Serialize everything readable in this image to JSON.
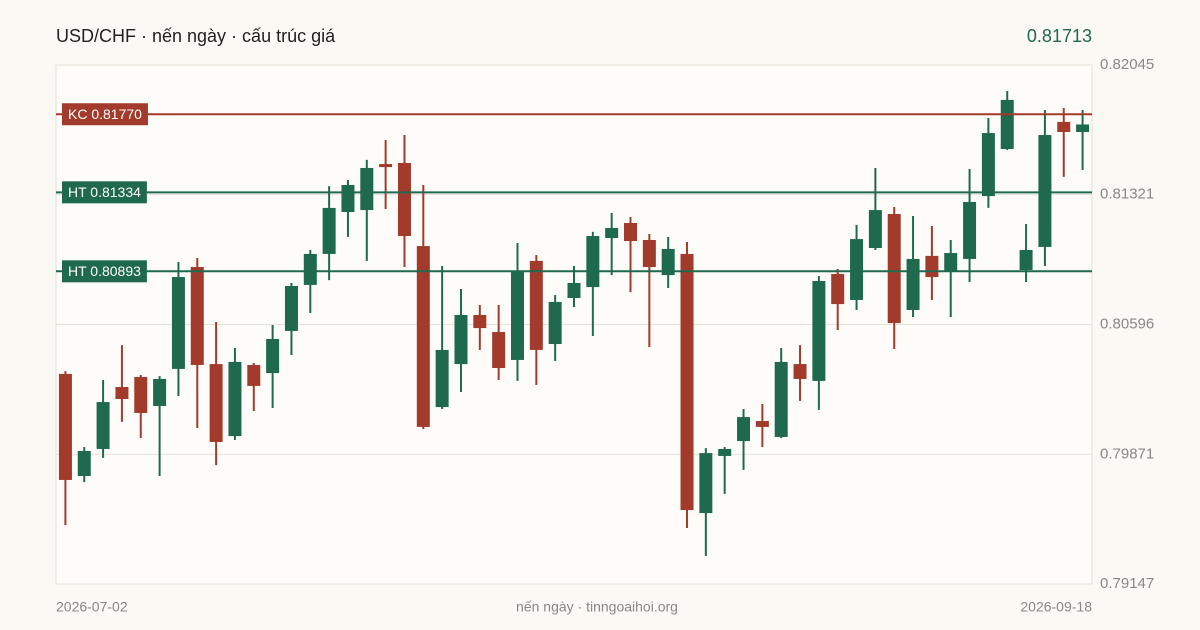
{
  "chart_data": {
    "type": "candlestick",
    "title": "USD/CHF · nến ngày · cấu trúc giá",
    "last_price": 0.81713,
    "footer": "nến ngày · tinngoaihoi.org",
    "categories": [
      "2026-07-02",
      null,
      null,
      null,
      null,
      null,
      null,
      null,
      null,
      null,
      null,
      null,
      null,
      null,
      null,
      null,
      null,
      null,
      null,
      null,
      null,
      null,
      null,
      null,
      null,
      null,
      null,
      null,
      null,
      null,
      null,
      null,
      null,
      null,
      null,
      null,
      null,
      null,
      null,
      null,
      null,
      null,
      null,
      null,
      null,
      null,
      null,
      null,
      null,
      null,
      null,
      null,
      null,
      null,
      "2026-09-18"
    ],
    "open": [
      0.8032,
      0.7975,
      0.79901,
      0.80247,
      0.80303,
      0.80141,
      0.80348,
      0.80917,
      0.80375,
      0.79973,
      0.8037,
      0.80325,
      0.8056,
      0.80817,
      0.8099,
      0.81224,
      0.81235,
      0.81492,
      0.81498,
      0.81034,
      0.80135,
      0.80375,
      0.80649,
      0.80554,
      0.80398,
      0.80951,
      0.80487,
      0.80744,
      0.80805,
      0.81079,
      0.81163,
      0.81068,
      0.80872,
      0.8099,
      0.79543,
      0.79862,
      0.79945,
      0.80057,
      0.79968,
      0.80375,
      0.80281,
      0.80878,
      0.80733,
      0.81023,
      0.81213,
      0.80677,
      0.80979,
      0.80895,
      0.80962,
      0.81313,
      0.81576,
      0.809,
      0.81029,
      0.81727,
      0.81671
    ],
    "high": [
      0.80336,
      0.79912,
      0.80286,
      0.80481,
      0.80314,
      0.80308,
      0.80945,
      0.80967,
      0.8061,
      0.80465,
      0.80381,
      0.80593,
      0.80828,
      0.81012,
      0.81369,
      0.81403,
      0.81515,
      0.81626,
      0.81654,
      0.81375,
      0.80923,
      0.80794,
      0.80705,
      0.80705,
      0.81051,
      0.80984,
      0.80761,
      0.80923,
      0.81113,
      0.81219,
      0.81196,
      0.81101,
      0.81085,
      0.81057,
      0.79906,
      0.79912,
      0.80124,
      0.80152,
      0.80465,
      0.80481,
      0.80867,
      0.80906,
      0.81152,
      0.8147,
      0.81252,
      0.81202,
      0.81146,
      0.81068,
      0.81464,
      0.81749,
      0.819,
      0.81157,
      0.81794,
      0.81805,
      0.81794
    ],
    "low": [
      0.79476,
      0.79716,
      0.79851,
      0.80052,
      0.79962,
      0.7975,
      0.80197,
      0.80018,
      0.79811,
      0.79951,
      0.80113,
      0.8013,
      0.80426,
      0.8066,
      0.80844,
      0.81085,
      0.80951,
      0.81241,
      0.80917,
      0.80012,
      0.80124,
      0.80219,
      0.80454,
      0.80286,
      0.80281,
      0.80258,
      0.80392,
      0.80694,
      0.80532,
      0.80872,
      0.80777,
      0.8047,
      0.808,
      0.7946,
      0.79303,
      0.7965,
      0.79784,
      0.79912,
      0.79962,
      0.80169,
      0.80119,
      0.80565,
      0.80677,
      0.81012,
      0.80459,
      0.80638,
      0.80733,
      0.80638,
      0.80833,
      0.81247,
      0.8157,
      0.80833,
      0.80923,
      0.8142,
      0.81459
    ],
    "close": [
      0.79728,
      0.7989,
      0.80163,
      0.8018,
      0.80102,
      0.80292,
      0.80861,
      0.8037,
      0.7994,
      0.80387,
      0.80253,
      0.80515,
      0.80811,
      0.8099,
      0.81247,
      0.81375,
      0.8147,
      0.81475,
      0.8109,
      0.80024,
      0.80454,
      0.80649,
      0.80576,
      0.80353,
      0.80895,
      0.80454,
      0.80722,
      0.80828,
      0.8109,
      0.81135,
      0.81062,
      0.80917,
      0.81018,
      0.7956,
      0.79878,
      0.79901,
      0.80079,
      0.80024,
      0.80387,
      0.80292,
      0.80839,
      0.8071,
      0.81073,
      0.81235,
      0.80604,
      0.80962,
      0.80861,
      0.80995,
      0.8128,
      0.81665,
      0.8185,
      0.81012,
      0.81654,
      0.81671,
      0.81713
    ],
    "up_color": "#1f6a4e",
    "down_color": "#a23b2b",
    "ylim": [
      0.79147,
      0.82045
    ],
    "yticks": [
      0.82045,
      0.81321,
      0.80596,
      0.79871,
      0.79147
    ],
    "grid": true,
    "levels": [
      {
        "label": "KC 0.81770",
        "value": 0.8177,
        "color": "#a23b2b"
      },
      {
        "label": "HT 0.81334",
        "value": 0.81334,
        "color": "#1f6a4e"
      },
      {
        "label": "HT 0.80893",
        "value": 0.80893,
        "color": "#1f6a4e"
      }
    ]
  }
}
